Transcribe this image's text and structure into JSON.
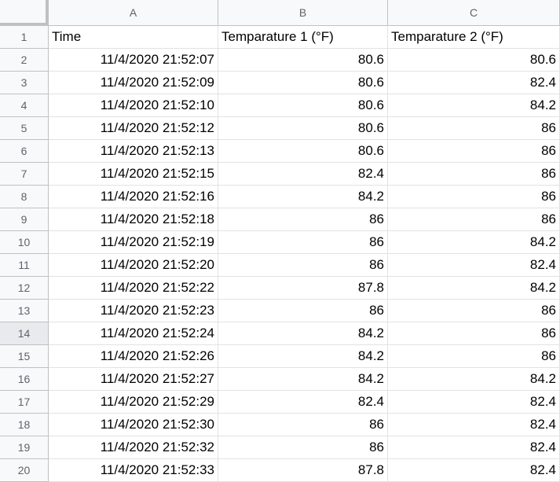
{
  "columns": [
    "A",
    "B",
    "C"
  ],
  "rows": [
    {
      "n": "1",
      "cells": [
        "Time",
        "Temparature 1 (°F)",
        "Temparature 2 (°F)"
      ]
    },
    {
      "n": "2",
      "cells": [
        "11/4/2020 21:52:07",
        "80.6",
        "80.6"
      ]
    },
    {
      "n": "3",
      "cells": [
        "11/4/2020 21:52:09",
        "80.6",
        "82.4"
      ]
    },
    {
      "n": "4",
      "cells": [
        "11/4/2020 21:52:10",
        "80.6",
        "84.2"
      ]
    },
    {
      "n": "5",
      "cells": [
        "11/4/2020 21:52:12",
        "80.6",
        "86"
      ]
    },
    {
      "n": "6",
      "cells": [
        "11/4/2020 21:52:13",
        "80.6",
        "86"
      ]
    },
    {
      "n": "7",
      "cells": [
        "11/4/2020 21:52:15",
        "82.4",
        "86"
      ]
    },
    {
      "n": "8",
      "cells": [
        "11/4/2020 21:52:16",
        "84.2",
        "86"
      ]
    },
    {
      "n": "9",
      "cells": [
        "11/4/2020 21:52:18",
        "86",
        "86"
      ]
    },
    {
      "n": "10",
      "cells": [
        "11/4/2020 21:52:19",
        "86",
        "84.2"
      ]
    },
    {
      "n": "11",
      "cells": [
        "11/4/2020 21:52:20",
        "86",
        "82.4"
      ]
    },
    {
      "n": "12",
      "cells": [
        "11/4/2020 21:52:22",
        "87.8",
        "84.2"
      ]
    },
    {
      "n": "13",
      "cells": [
        "11/4/2020 21:52:23",
        "86",
        "86"
      ]
    },
    {
      "n": "14",
      "cells": [
        "11/4/2020 21:52:24",
        "84.2",
        "86"
      ]
    },
    {
      "n": "15",
      "cells": [
        "11/4/2020 21:52:26",
        "84.2",
        "86"
      ]
    },
    {
      "n": "16",
      "cells": [
        "11/4/2020 21:52:27",
        "84.2",
        "84.2"
      ]
    },
    {
      "n": "17",
      "cells": [
        "11/4/2020 21:52:29",
        "82.4",
        "82.4"
      ]
    },
    {
      "n": "18",
      "cells": [
        "11/4/2020 21:52:30",
        "86",
        "82.4"
      ]
    },
    {
      "n": "19",
      "cells": [
        "11/4/2020 21:52:32",
        "86",
        "82.4"
      ]
    },
    {
      "n": "20",
      "cells": [
        "11/4/2020 21:52:33",
        "87.8",
        "82.4"
      ]
    }
  ],
  "active_row": "14",
  "colors": {
    "header_bg": "#f8f9fa",
    "active_header_bg": "#e8eaed",
    "grid_line": "#e2e2e2",
    "header_line": "#c0c0c0"
  }
}
